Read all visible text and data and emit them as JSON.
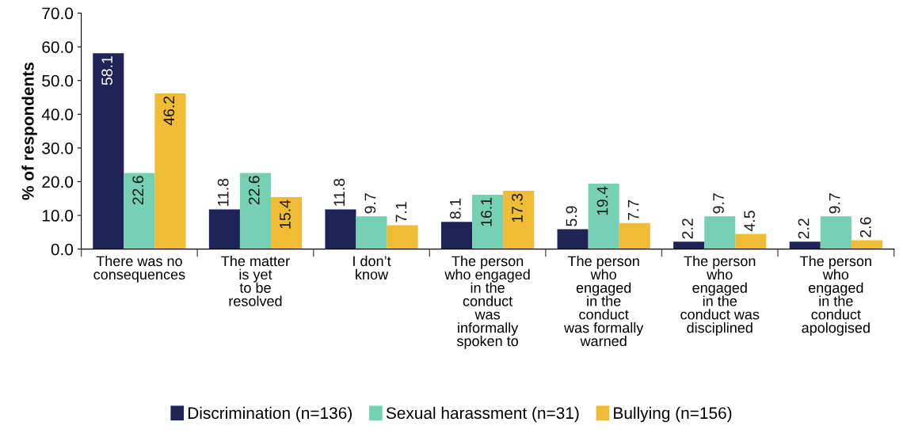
{
  "chart_data": {
    "type": "bar",
    "ylabel": "% of respondents",
    "categories": [
      "There was no\nconsequences",
      "The matter\nis yet\nto be\nresolved",
      "I don’t\nknow",
      "The person\nwho engaged\nin the\nconduct\nwas\ninformally\nspoken to",
      "The person\nwho\nengaged\nin the\nconduct\nwas formally\nwarned",
      "The person\nwho\nengaged\nin the\nconduct was\ndisciplined",
      "The person\nwho\nengaged\nin the\nconduct\napologised"
    ],
    "series": [
      {
        "name": "Discrimination (n=136)",
        "color": "#1f2355",
        "values": [
          58.1,
          11.8,
          11.8,
          8.1,
          5.9,
          2.2,
          2.2
        ]
      },
      {
        "name": "Sexual harassment (n=31)",
        "color": "#76d1b4",
        "values": [
          22.6,
          22.6,
          9.7,
          16.1,
          19.4,
          9.7,
          9.7
        ]
      },
      {
        "name": "Bullying (n=156)",
        "color": "#f0bb35",
        "values": [
          46.2,
          15.4,
          7.1,
          17.3,
          7.7,
          4.5,
          2.6
        ]
      }
    ],
    "ylim": [
      0,
      70
    ],
    "yticks": [
      {
        "value": 0,
        "label": "0.0"
      },
      {
        "value": 10,
        "label": "10.0"
      },
      {
        "value": 20,
        "label": "20.0"
      },
      {
        "value": 30,
        "label": "30.0"
      },
      {
        "value": 40,
        "label": "40.0"
      },
      {
        "value": 50,
        "label": "50.0"
      },
      {
        "value": 60,
        "label": "60.0"
      },
      {
        "value": 70,
        "label": "70.0"
      }
    ],
    "data_labels": true,
    "grid": false,
    "legend": "bottom"
  }
}
